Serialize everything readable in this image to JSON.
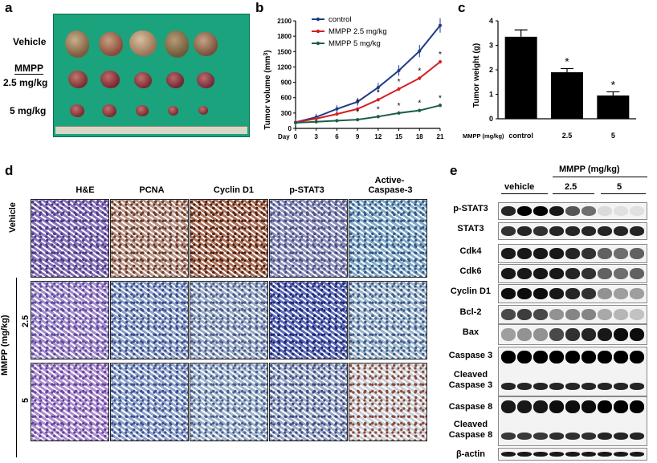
{
  "panels": {
    "a": "a",
    "b": "b",
    "c": "c",
    "d": "d",
    "e": "e"
  },
  "panel_a": {
    "row_labels": [
      "Vehicle",
      "MMPP",
      "2.5 mg/kg",
      "5 mg/kg"
    ]
  },
  "chart_b": {
    "type": "line",
    "ylabel": "Tumor volume (mm",
    "ylabel_sup": "3",
    "ylabel_end": ")",
    "xlabel": "Day",
    "x": [
      0,
      3,
      6,
      9,
      12,
      15,
      18,
      21
    ],
    "ylim": [
      0,
      2100
    ],
    "yticks": [
      0,
      300,
      600,
      900,
      1200,
      1500,
      1800,
      2100
    ],
    "series": [
      {
        "name": "control",
        "color": "#1f3a8a",
        "values": [
          120,
          220,
          380,
          520,
          800,
          1130,
          1510,
          2010
        ]
      },
      {
        "name": "MMPP 2.5 mg/kg",
        "color": "#d42020",
        "values": [
          120,
          190,
          280,
          380,
          560,
          770,
          980,
          1300
        ]
      },
      {
        "name": "MMPP 5 mg/kg",
        "color": "#1b5e4a",
        "values": [
          110,
          130,
          150,
          170,
          230,
          300,
          350,
          450
        ]
      }
    ]
  },
  "chart_c": {
    "type": "bar",
    "ylabel": "Tumor weight (g)",
    "xprefix": "MMPP (mg/kg)",
    "categories": [
      "control",
      "2.5",
      "5"
    ],
    "values": [
      3.35,
      1.9,
      0.95
    ],
    "errors": [
      0.28,
      0.15,
      0.15
    ],
    "ylim": [
      0,
      4
    ],
    "yticks": [
      0,
      1,
      2,
      3,
      4
    ],
    "sig": [
      "",
      "*",
      "*"
    ]
  },
  "chart_data": [
    {
      "type": "line",
      "ylabel": "Tumor volume (mm3)",
      "xlabel": "Day",
      "x": [
        0,
        3,
        6,
        9,
        12,
        15,
        18,
        21
      ],
      "ylim": [
        0,
        2100
      ],
      "series": [
        {
          "name": "control",
          "values": [
            120,
            220,
            380,
            520,
            800,
            1130,
            1510,
            2010
          ]
        },
        {
          "name": "MMPP 2.5 mg/kg",
          "values": [
            120,
            190,
            280,
            380,
            560,
            770,
            980,
            1300
          ]
        },
        {
          "name": "MMPP 5 mg/kg",
          "values": [
            110,
            130,
            150,
            170,
            230,
            300,
            350,
            450
          ]
        }
      ]
    },
    {
      "type": "bar",
      "ylabel": "Tumor weight (g)",
      "categories": [
        "control",
        "2.5",
        "5"
      ],
      "values": [
        3.35,
        1.9,
        0.95
      ],
      "ylim": [
        0,
        4
      ]
    }
  ],
  "panel_d": {
    "columns": [
      "H&E",
      "PCNA",
      "Cyclin D1",
      "p-STAT3",
      "Active-",
      "Caspase-3"
    ],
    "rows": [
      "Vehicle",
      "2.5",
      "5"
    ],
    "group_label": "MMPP (mg/kg)"
  },
  "panel_e": {
    "header": "MMPP (mg/kg)",
    "groups": [
      "vehicle",
      "2.5",
      "5"
    ],
    "proteins": [
      "p-STAT3",
      "STAT3",
      "Cdk4",
      "Cdk6",
      "Cyclin D1",
      "Bcl-2",
      "Bax",
      "Caspase 3",
      "Cleaved",
      "Caspase 3",
      "Caspase 8",
      "Cleaved",
      "Caspase 8",
      "β-actin"
    ]
  }
}
